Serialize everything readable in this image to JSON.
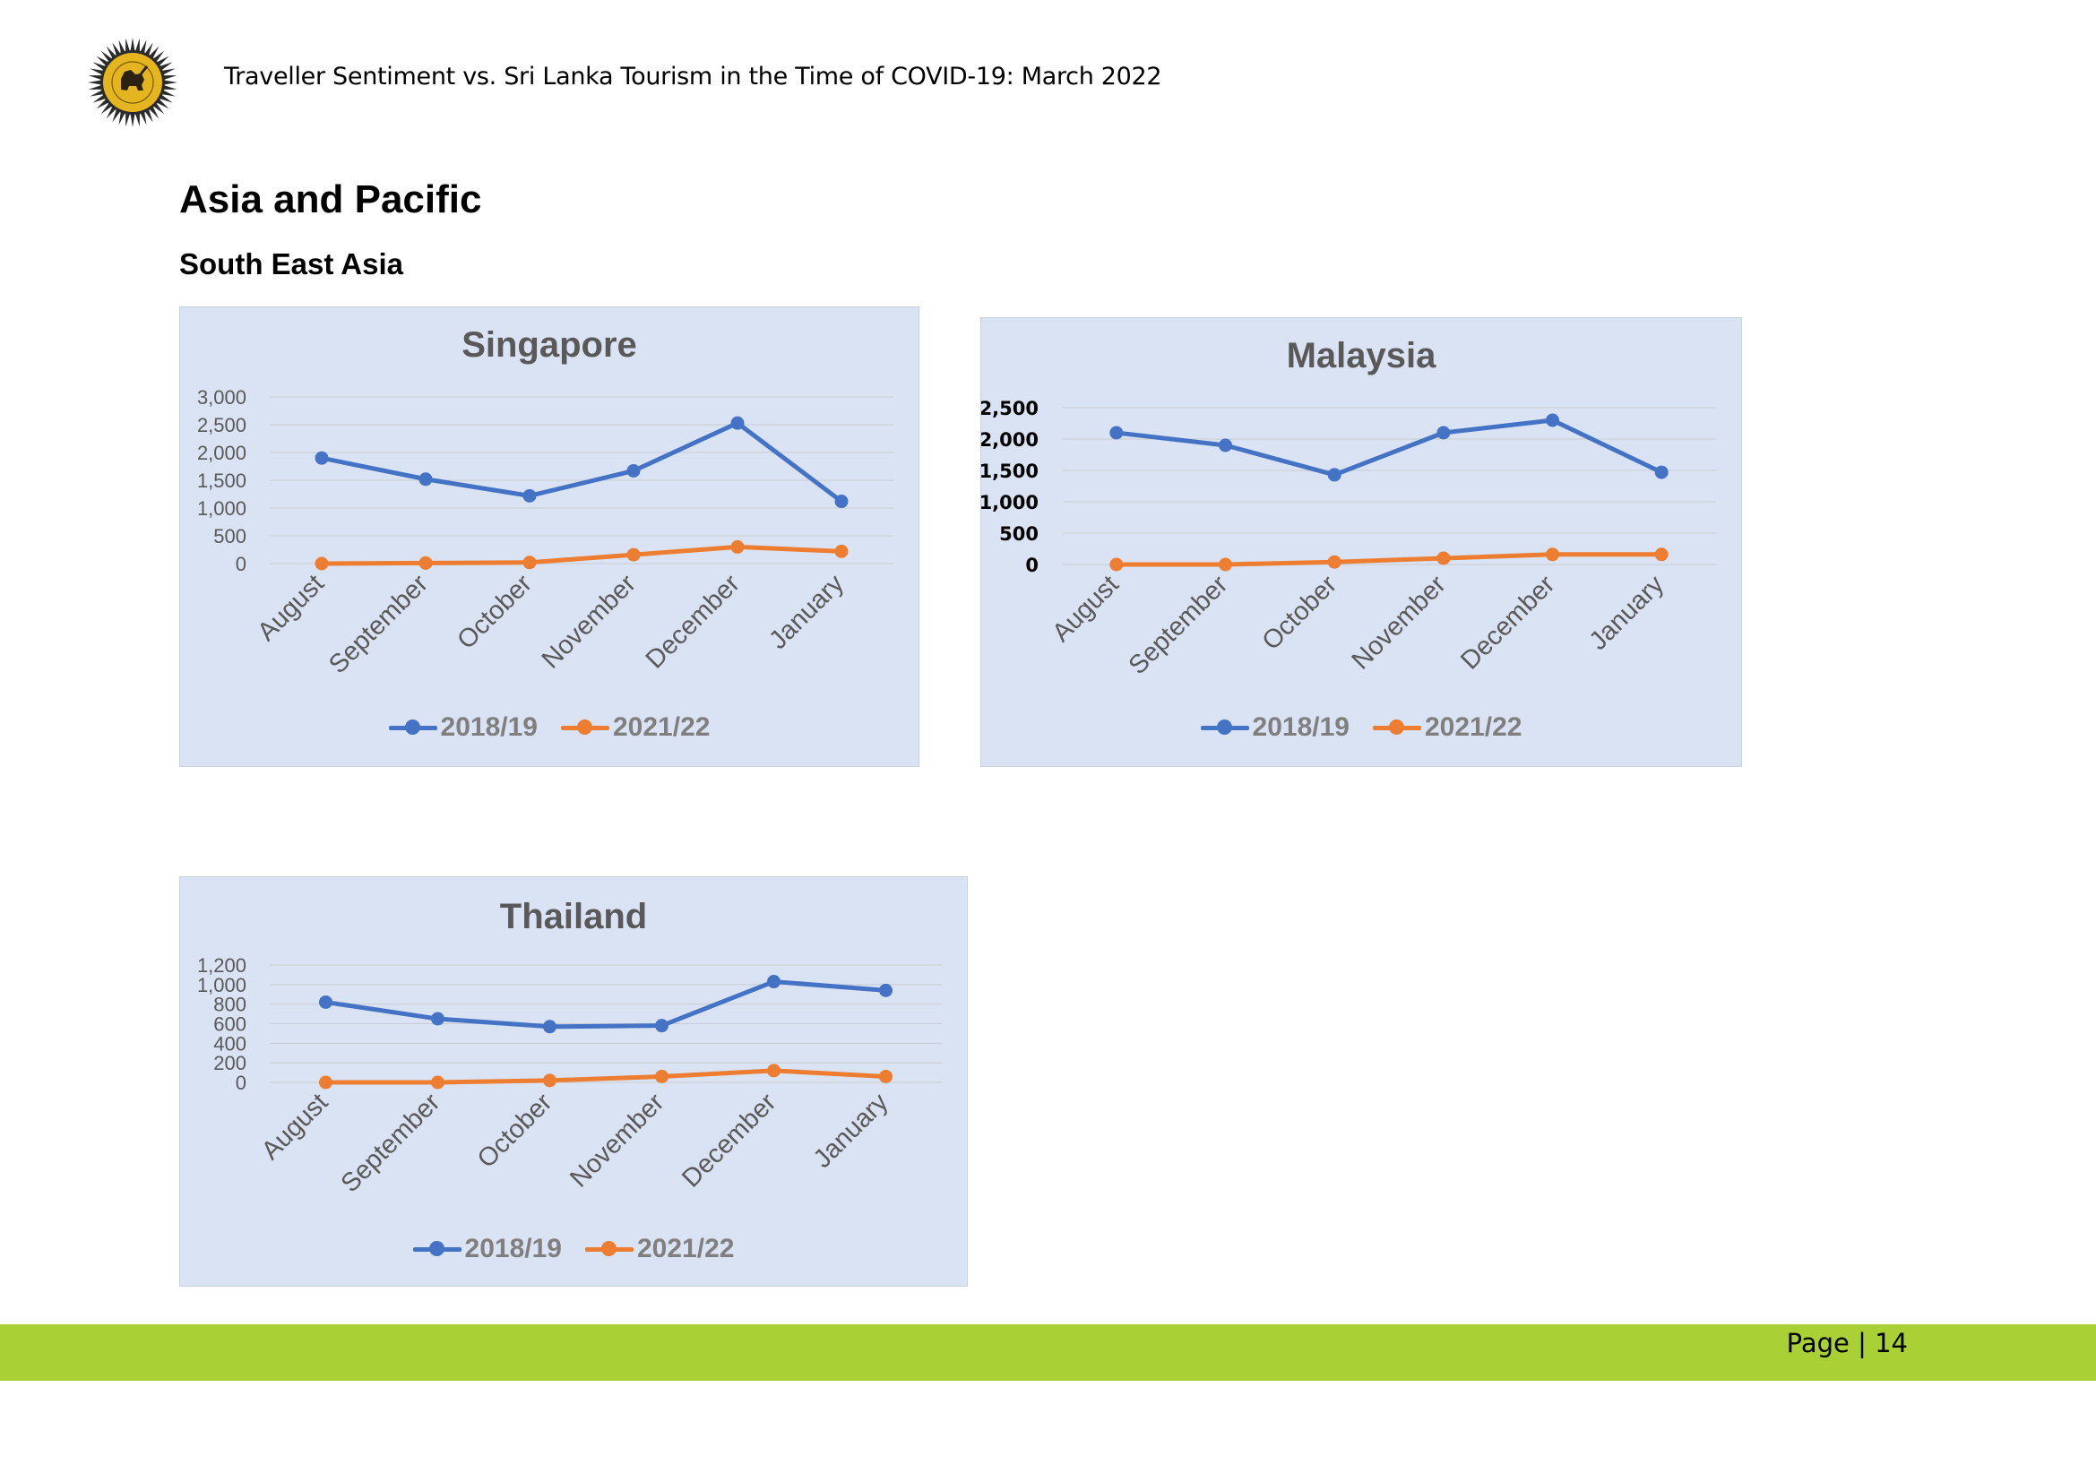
{
  "header": {
    "text": "Traveller Sentiment vs. Sri Lanka Tourism in the Time of COVID-19: March 2022"
  },
  "headings": {
    "h1": "Asia and Pacific",
    "h2": "South East Asia"
  },
  "colors": {
    "series_2018": "#4472c4",
    "series_2021": "#ed7d31",
    "chart_bg": "#dae3f3",
    "footer": "#a9d136"
  },
  "chart_data": [
    {
      "type": "line",
      "title": "Singapore",
      "categories": [
        "August",
        "September",
        "October",
        "November",
        "December",
        "January"
      ],
      "series": [
        {
          "name": "2018/19",
          "values": [
            1900,
            1520,
            1220,
            1670,
            2530,
            1120
          ]
        },
        {
          "name": "2021/22",
          "values": [
            0,
            10,
            20,
            160,
            300,
            220
          ]
        }
      ],
      "yticks": [
        0,
        500,
        1000,
        1500,
        2000,
        2500,
        3000
      ],
      "ytick_labels": [
        "0",
        "500",
        "1,000",
        "1,500",
        "2,000",
        "2,500",
        "3,000"
      ],
      "ylim": [
        0,
        3000
      ],
      "grid": true,
      "legend": "bottom"
    },
    {
      "type": "line",
      "title": "Malaysia",
      "categories": [
        "August",
        "September",
        "October",
        "November",
        "December",
        "January"
      ],
      "series": [
        {
          "name": "2018/19",
          "values": [
            2100,
            1900,
            1430,
            2100,
            2300,
            1470
          ]
        },
        {
          "name": "2021/22",
          "values": [
            0,
            0,
            40,
            100,
            160,
            160
          ]
        }
      ],
      "yticks": [
        0,
        500,
        1000,
        1500,
        2000,
        2500
      ],
      "ytick_labels": [
        "0",
        "500",
        "1,000",
        "1,500",
        "2,000",
        "2,500"
      ],
      "ylim": [
        0,
        2500
      ],
      "grid": true,
      "legend": "bottom"
    },
    {
      "type": "line",
      "title": "Thailand",
      "categories": [
        "August",
        "September",
        "October",
        "November",
        "December",
        "January"
      ],
      "series": [
        {
          "name": "2018/19",
          "values": [
            820,
            650,
            570,
            580,
            1030,
            940
          ]
        },
        {
          "name": "2021/22",
          "values": [
            0,
            0,
            20,
            60,
            120,
            60
          ]
        }
      ],
      "yticks": [
        0,
        200,
        400,
        600,
        800,
        1000,
        1200
      ],
      "ytick_labels": [
        "0",
        "200",
        "400",
        "600",
        "800",
        "1,000",
        "1,200"
      ],
      "ylim": [
        0,
        1200
      ],
      "grid": true,
      "legend": "bottom"
    }
  ],
  "footer": {
    "page": "Page | 14"
  }
}
